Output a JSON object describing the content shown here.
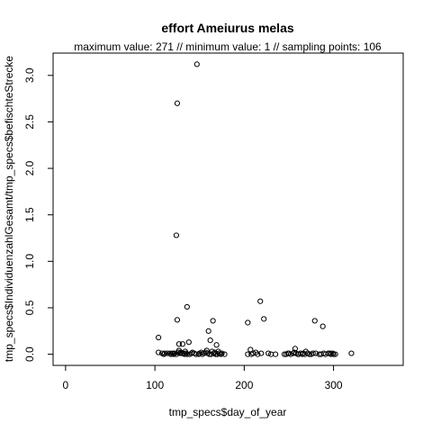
{
  "chart_data": {
    "type": "scatter",
    "title": "effort Ameiurus melas",
    "subtitle": "maximum value: 271  //  minimum value: 1  // sampling points: 106",
    "xlabel": "tmp_specs$day_of_year",
    "ylabel": "tmp_specs$IndividuenzahlGesamt/tmp_specs$befischteStrecke",
    "xlim": [
      -14,
      378
    ],
    "ylim": [
      -0.12,
      3.24
    ],
    "xticks": [
      0,
      100,
      200,
      300
    ],
    "yticks": [
      0.0,
      0.5,
      1.0,
      1.5,
      2.0,
      2.5,
      3.0
    ],
    "xtick_labels": [
      "0",
      "100",
      "200",
      "300"
    ],
    "ytick_labels": [
      "0.0",
      "0.5",
      "1.0",
      "1.5",
      "2.0",
      "2.5",
      "3.0"
    ],
    "grid": false,
    "points": [
      [
        147,
        3.12
      ],
      [
        125,
        2.7
      ],
      [
        124,
        1.28
      ],
      [
        218,
        0.57
      ],
      [
        136,
        0.51
      ],
      [
        125,
        0.37
      ],
      [
        222,
        0.38
      ],
      [
        165,
        0.36
      ],
      [
        204,
        0.34
      ],
      [
        279,
        0.36
      ],
      [
        288,
        0.3
      ],
      [
        160,
        0.25
      ],
      [
        104,
        0.18
      ],
      [
        162,
        0.15
      ],
      [
        138,
        0.13
      ],
      [
        127,
        0.11
      ],
      [
        131,
        0.11
      ],
      [
        169,
        0.1
      ],
      [
        207,
        0.05
      ],
      [
        257,
        0.06
      ],
      [
        269,
        0.03
      ],
      [
        158,
        0.04
      ],
      [
        127,
        0.04
      ],
      [
        134,
        0.03
      ],
      [
        142,
        0.02
      ],
      [
        152,
        0.02
      ],
      [
        157,
        0.02
      ],
      [
        164,
        0.03
      ],
      [
        171,
        0.03
      ],
      [
        104,
        0.02
      ],
      [
        108,
        0.01
      ],
      [
        111,
        0.01
      ],
      [
        114,
        0.01
      ],
      [
        117,
        0.01
      ],
      [
        120,
        0.01
      ],
      [
        122,
        0.01
      ],
      [
        126,
        0.02
      ],
      [
        128,
        0.01
      ],
      [
        129,
        0.02
      ],
      [
        130,
        0.01
      ],
      [
        132,
        0.01
      ],
      [
        133,
        0.0
      ],
      [
        135,
        0.01
      ],
      [
        139,
        0.0
      ],
      [
        144,
        0.01
      ],
      [
        149,
        0.0
      ],
      [
        155,
        0.01
      ],
      [
        159,
        0.01
      ],
      [
        163,
        0.0
      ],
      [
        166,
        0.01
      ],
      [
        168,
        0.0
      ],
      [
        172,
        0.01
      ],
      [
        175,
        0.01
      ],
      [
        178,
        0.0
      ],
      [
        204,
        0.0
      ],
      [
        210,
        0.01
      ],
      [
        213,
        0.02
      ],
      [
        219,
        0.01
      ],
      [
        227,
        0.01
      ],
      [
        235,
        0.0
      ],
      [
        245,
        0.0
      ],
      [
        249,
        0.01
      ],
      [
        252,
        0.0
      ],
      [
        255,
        0.01
      ],
      [
        258,
        0.01
      ],
      [
        261,
        0.0
      ],
      [
        263,
        0.01
      ],
      [
        266,
        0.01
      ],
      [
        271,
        0.01
      ],
      [
        273,
        0.0
      ],
      [
        277,
        0.01
      ],
      [
        284,
        0.0
      ],
      [
        291,
        0.0
      ],
      [
        294,
        0.01
      ],
      [
        297,
        0.0
      ],
      [
        300,
        0.0
      ],
      [
        302,
        0.0
      ],
      [
        320,
        0.01
      ],
      [
        110,
        0.0
      ],
      [
        118,
        0.0
      ],
      [
        124,
        0.0
      ],
      [
        136,
        0.0
      ],
      [
        141,
        0.01
      ],
      [
        150,
        0.01
      ],
      [
        153,
        0.0
      ],
      [
        161,
        0.0
      ],
      [
        167,
        0.02
      ],
      [
        170,
        0.0
      ],
      [
        174,
        0.0
      ],
      [
        208,
        0.0
      ],
      [
        215,
        0.0
      ],
      [
        230,
        0.0
      ],
      [
        247,
        0.0
      ],
      [
        250,
        0.01
      ],
      [
        256,
        0.02
      ],
      [
        260,
        0.0
      ],
      [
        265,
        0.0
      ],
      [
        268,
        0.0
      ],
      [
        275,
        0.0
      ],
      [
        280,
        0.01
      ],
      [
        286,
        0.0
      ],
      [
        289,
        0.01
      ],
      [
        296,
        0.01
      ],
      [
        299,
        0.01
      ],
      [
        121,
        0.0
      ],
      [
        146,
        0.0
      ]
    ]
  }
}
